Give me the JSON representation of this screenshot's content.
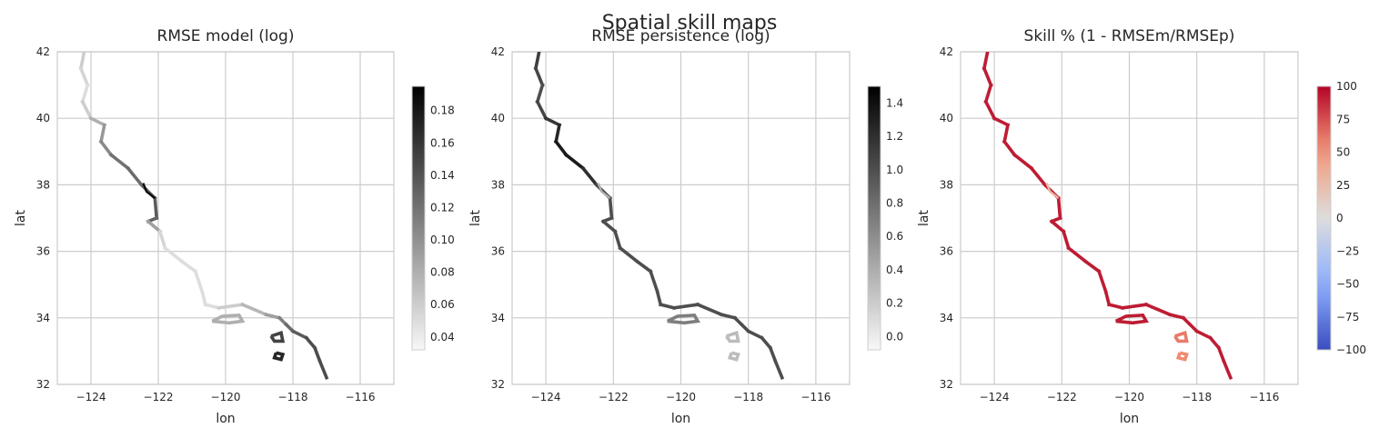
{
  "figure": {
    "suptitle": "Spatial skill maps",
    "panels": [
      {
        "title": "RMSE model (log)",
        "colorbar": {
          "cmap": "greys",
          "range": [
            0.032,
            0.195
          ],
          "ticks": [
            "0.04",
            "0.06",
            "0.08",
            "0.10",
            "0.12",
            "0.14",
            "0.16",
            "0.18"
          ],
          "tick_values": [
            0.04,
            0.06,
            0.08,
            0.1,
            0.12,
            0.14,
            0.16,
            0.18
          ]
        }
      },
      {
        "title": "RMSE persistence (log)",
        "colorbar": {
          "cmap": "greys",
          "range": [
            -0.08,
            1.5
          ],
          "ticks": [
            "0.0",
            "0.2",
            "0.4",
            "0.6",
            "0.8",
            "1.0",
            "1.2",
            "1.4"
          ],
          "tick_values": [
            0.0,
            0.2,
            0.4,
            0.6,
            0.8,
            1.0,
            1.2,
            1.4
          ]
        }
      },
      {
        "title": "Skill % (1 - RMSEm/RMSEp)",
        "colorbar": {
          "cmap": "coolwarm",
          "range": [
            -100,
            100
          ],
          "ticks": [
            "−100",
            "−75",
            "−50",
            "−25",
            "0",
            "25",
            "50",
            "75",
            "100"
          ],
          "tick_values": [
            -100,
            -75,
            -50,
            -25,
            0,
            25,
            50,
            75,
            100
          ]
        }
      }
    ]
  },
  "chart_data": {
    "type": "heatmap",
    "x_axis": {
      "label": "lon",
      "range": [
        -125,
        -115
      ],
      "ticks": [
        "−124",
        "−122",
        "−120",
        "−118",
        "−116"
      ],
      "tick_values": [
        -124,
        -122,
        -120,
        -118,
        -116
      ]
    },
    "y_axis": {
      "label": "lat",
      "range": [
        32,
        42
      ],
      "ticks": [
        "32",
        "34",
        "36",
        "38",
        "40",
        "42"
      ],
      "tick_values": [
        32,
        34,
        36,
        38,
        40,
        42
      ]
    },
    "coastline": [
      [
        -124.2,
        42.0
      ],
      [
        -124.3,
        41.5
      ],
      [
        -124.1,
        41.0
      ],
      [
        -124.25,
        40.5
      ],
      [
        -124.0,
        40.0
      ],
      [
        -123.6,
        39.8
      ],
      [
        -123.7,
        39.3
      ],
      [
        -123.4,
        38.9
      ],
      [
        -122.9,
        38.5
      ],
      [
        -122.5,
        38.0
      ],
      [
        -122.1,
        37.6
      ],
      [
        -122.05,
        37.0
      ],
      [
        -122.3,
        36.9
      ],
      [
        -121.95,
        36.6
      ],
      [
        -121.8,
        36.1
      ],
      [
        -121.3,
        35.7
      ],
      [
        -120.9,
        35.4
      ],
      [
        -120.7,
        34.8
      ],
      [
        -120.6,
        34.4
      ],
      [
        -120.2,
        34.3
      ],
      [
        -119.5,
        34.4
      ],
      [
        -118.8,
        34.1
      ],
      [
        -118.4,
        34.0
      ],
      [
        -118.2,
        33.8
      ],
      [
        -118.0,
        33.6
      ],
      [
        -117.6,
        33.4
      ],
      [
        -117.35,
        33.1
      ],
      [
        -117.2,
        32.7
      ],
      [
        -117.0,
        32.2
      ]
    ],
    "islands": [
      [
        [
          -120.4,
          33.9
        ],
        [
          -120.1,
          34.05
        ],
        [
          -119.6,
          34.08
        ],
        [
          -119.5,
          33.9
        ],
        [
          -119.9,
          33.85
        ],
        [
          -120.4,
          33.9
        ]
      ],
      [
        [
          -118.65,
          33.45
        ],
        [
          -118.35,
          33.55
        ],
        [
          -118.3,
          33.3
        ],
        [
          -118.55,
          33.3
        ],
        [
          -118.65,
          33.45
        ]
      ],
      [
        [
          -118.5,
          32.95
        ],
        [
          -118.3,
          32.9
        ],
        [
          -118.35,
          32.75
        ],
        [
          -118.55,
          32.8
        ],
        [
          -118.5,
          32.95
        ]
      ]
    ],
    "bay_spur": [
      [
        -122.45,
        38.05
      ],
      [
        -122.35,
        37.8
      ],
      [
        -122.1,
        37.6
      ]
    ],
    "series": [
      {
        "panel": 0,
        "coast_values": [
          0.06,
          0.06,
          0.05,
          0.05,
          0.07,
          0.09,
          0.1,
          0.11,
          0.13,
          0.12,
          0.13,
          0.14,
          0.12,
          0.06,
          0.05,
          0.05,
          0.05,
          0.05,
          0.05,
          0.05,
          0.07,
          0.08,
          0.1,
          0.12,
          0.13,
          0.14,
          0.15,
          0.14,
          0.15
        ],
        "island_values": [
          0.08,
          0.15,
          0.17
        ],
        "spur_value": 0.19
      },
      {
        "panel": 1,
        "coast_values": [
          1.1,
          1.1,
          1.0,
          1.0,
          1.1,
          1.2,
          1.3,
          1.35,
          1.3,
          1.1,
          1.0,
          1.0,
          1.0,
          1.0,
          1.0,
          1.0,
          1.0,
          1.0,
          1.0,
          1.0,
          1.0,
          1.0,
          1.0,
          1.0,
          1.0,
          1.0,
          1.0,
          1.0,
          1.0
        ],
        "island_values": [
          0.7,
          0.3,
          0.3
        ],
        "spur_value": 0.4
      },
      {
        "panel": 2,
        "coast_values": [
          92,
          92,
          92,
          92,
          92,
          92,
          92,
          92,
          92,
          92,
          92,
          92,
          92,
          92,
          92,
          92,
          92,
          92,
          92,
          92,
          92,
          92,
          92,
          92,
          92,
          92,
          92,
          92,
          92
        ],
        "island_values": [
          92,
          60,
          55
        ],
        "spur_value": 30
      }
    ]
  }
}
